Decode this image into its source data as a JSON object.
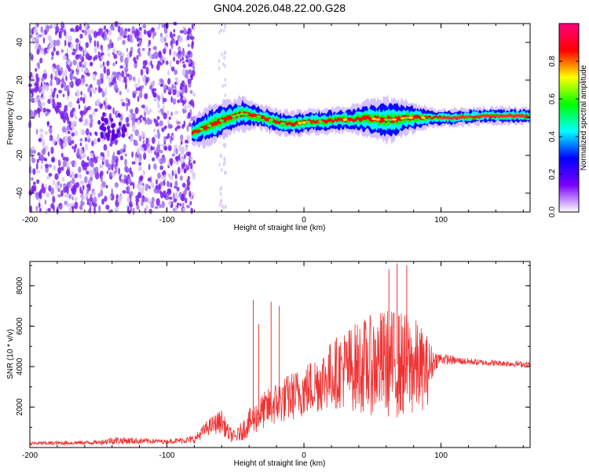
{
  "title": "GN04.2026.048.22.00.G28",
  "chart_data": [
    {
      "type": "heatmap",
      "id": "spectrogram",
      "xlabel": "Height of straight line (km)",
      "ylabel": "Frequency (Hz)",
      "xlim": [
        -200,
        165
      ],
      "ylim": [
        -50,
        50
      ],
      "x_ticks": [
        -200,
        -100,
        0,
        100
      ],
      "y_ticks": [
        -40,
        -20,
        0,
        20,
        40
      ],
      "noise_region_x": [
        -200,
        -80
      ],
      "signal_track": {
        "x": [
          -82,
          -75,
          -65,
          -55,
          -45,
          -35,
          -25,
          -15,
          -5,
          5,
          15,
          25,
          35,
          45,
          55,
          65,
          75,
          85,
          95,
          110,
          130,
          150,
          165
        ],
        "center_hz": [
          -8,
          -6,
          -3,
          0,
          2,
          1,
          -1,
          -3,
          -3,
          -2,
          -2,
          -1,
          -1,
          0,
          -1,
          -1,
          0,
          0,
          0,
          0,
          1,
          1,
          1
        ],
        "half_width_hz": [
          3,
          4,
          5,
          4,
          4,
          3,
          3,
          3,
          3,
          3,
          3,
          3,
          3,
          4,
          5,
          5,
          4,
          3,
          2,
          2,
          2,
          2,
          2
        ]
      },
      "colorbar": {
        "label": "Normalized spectral amplitude",
        "range": [
          0,
          1
        ],
        "ticks": [
          0.0,
          0.2,
          0.4,
          0.6,
          0.8
        ],
        "tick_labels": [
          "0.0",
          "0.2",
          "0.4",
          "0.6",
          "0.8"
        ],
        "colors": [
          "#ffffff",
          "#7a00ff",
          "#0000ff",
          "#00ffff",
          "#00ff00",
          "#ffff00",
          "#ff0000",
          "#ff0080"
        ]
      }
    },
    {
      "type": "line",
      "id": "snr",
      "xlabel": "Height of straight line (km)",
      "ylabel": "SNR (10 * v/v)",
      "xlim": [
        -200,
        165
      ],
      "ylim": [
        0,
        9200
      ],
      "x_ticks": [
        -200,
        -100,
        0,
        100
      ],
      "y_ticks": [
        2000,
        4000,
        6000,
        8000
      ],
      "line_color": "#ee3333",
      "series": [
        {
          "name": "SNR",
          "envelope_x": [
            -200,
            -150,
            -140,
            -100,
            -80,
            -70,
            -60,
            -55,
            -50,
            -40,
            -30,
            -20,
            -10,
            0,
            10,
            20,
            30,
            40,
            50,
            60,
            70,
            80,
            90,
            95,
            100,
            110,
            130,
            150,
            165
          ],
          "envelope_mean": [
            200,
            250,
            350,
            300,
            400,
            1000,
            1300,
            700,
            500,
            1200,
            1800,
            2200,
            2500,
            2800,
            3200,
            3600,
            3900,
            4000,
            4100,
            4200,
            4100,
            4000,
            3800,
            4300,
            4400,
            4300,
            4200,
            4150,
            4100
          ],
          "envelope_amp": [
            100,
            100,
            200,
            100,
            200,
            400,
            600,
            400,
            300,
            700,
            900,
            1100,
            1200,
            1300,
            1500,
            1700,
            2000,
            2300,
            2500,
            2700,
            2700,
            2500,
            1800,
            500,
            300,
            200,
            150,
            150,
            150
          ]
        }
      ],
      "spikes": [
        {
          "x": -37,
          "y": 7300
        },
        {
          "x": -33,
          "y": 6100
        },
        {
          "x": -24,
          "y": 7200
        },
        {
          "x": -18,
          "y": 7000
        },
        {
          "x": 62,
          "y": 8800
        },
        {
          "x": 68,
          "y": 9100
        },
        {
          "x": 75,
          "y": 9000
        }
      ]
    }
  ]
}
